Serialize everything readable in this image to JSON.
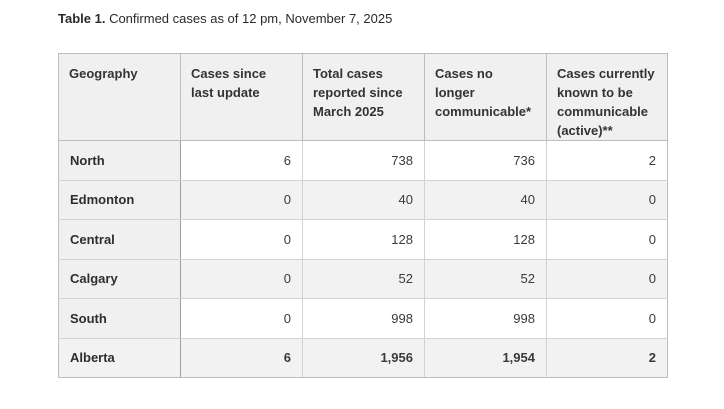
{
  "caption": {
    "label": "Table 1.",
    "text": " Confirmed cases as of 12 pm, November 7, 2025"
  },
  "table": {
    "headers": [
      "Geography",
      "Cases since last update",
      "Total cases reported since March 2025",
      "Cases no longer communicable*",
      "Cases currently known to be communicable (active)**"
    ],
    "rows": [
      {
        "geography": "North",
        "since_update": "6",
        "total": "738",
        "no_longer": "736",
        "active": "2"
      },
      {
        "geography": "Edmonton",
        "since_update": "0",
        "total": "40",
        "no_longer": "40",
        "active": "0"
      },
      {
        "geography": "Central",
        "since_update": "0",
        "total": "128",
        "no_longer": "128",
        "active": "0"
      },
      {
        "geography": "Calgary",
        "since_update": "0",
        "total": "52",
        "no_longer": "52",
        "active": "0"
      },
      {
        "geography": "South",
        "since_update": "0",
        "total": "998",
        "no_longer": "998",
        "active": "0"
      }
    ],
    "total_row": {
      "geography": "Alberta",
      "since_update": "6",
      "total": "1,956",
      "no_longer": "1,954",
      "active": "2"
    }
  }
}
